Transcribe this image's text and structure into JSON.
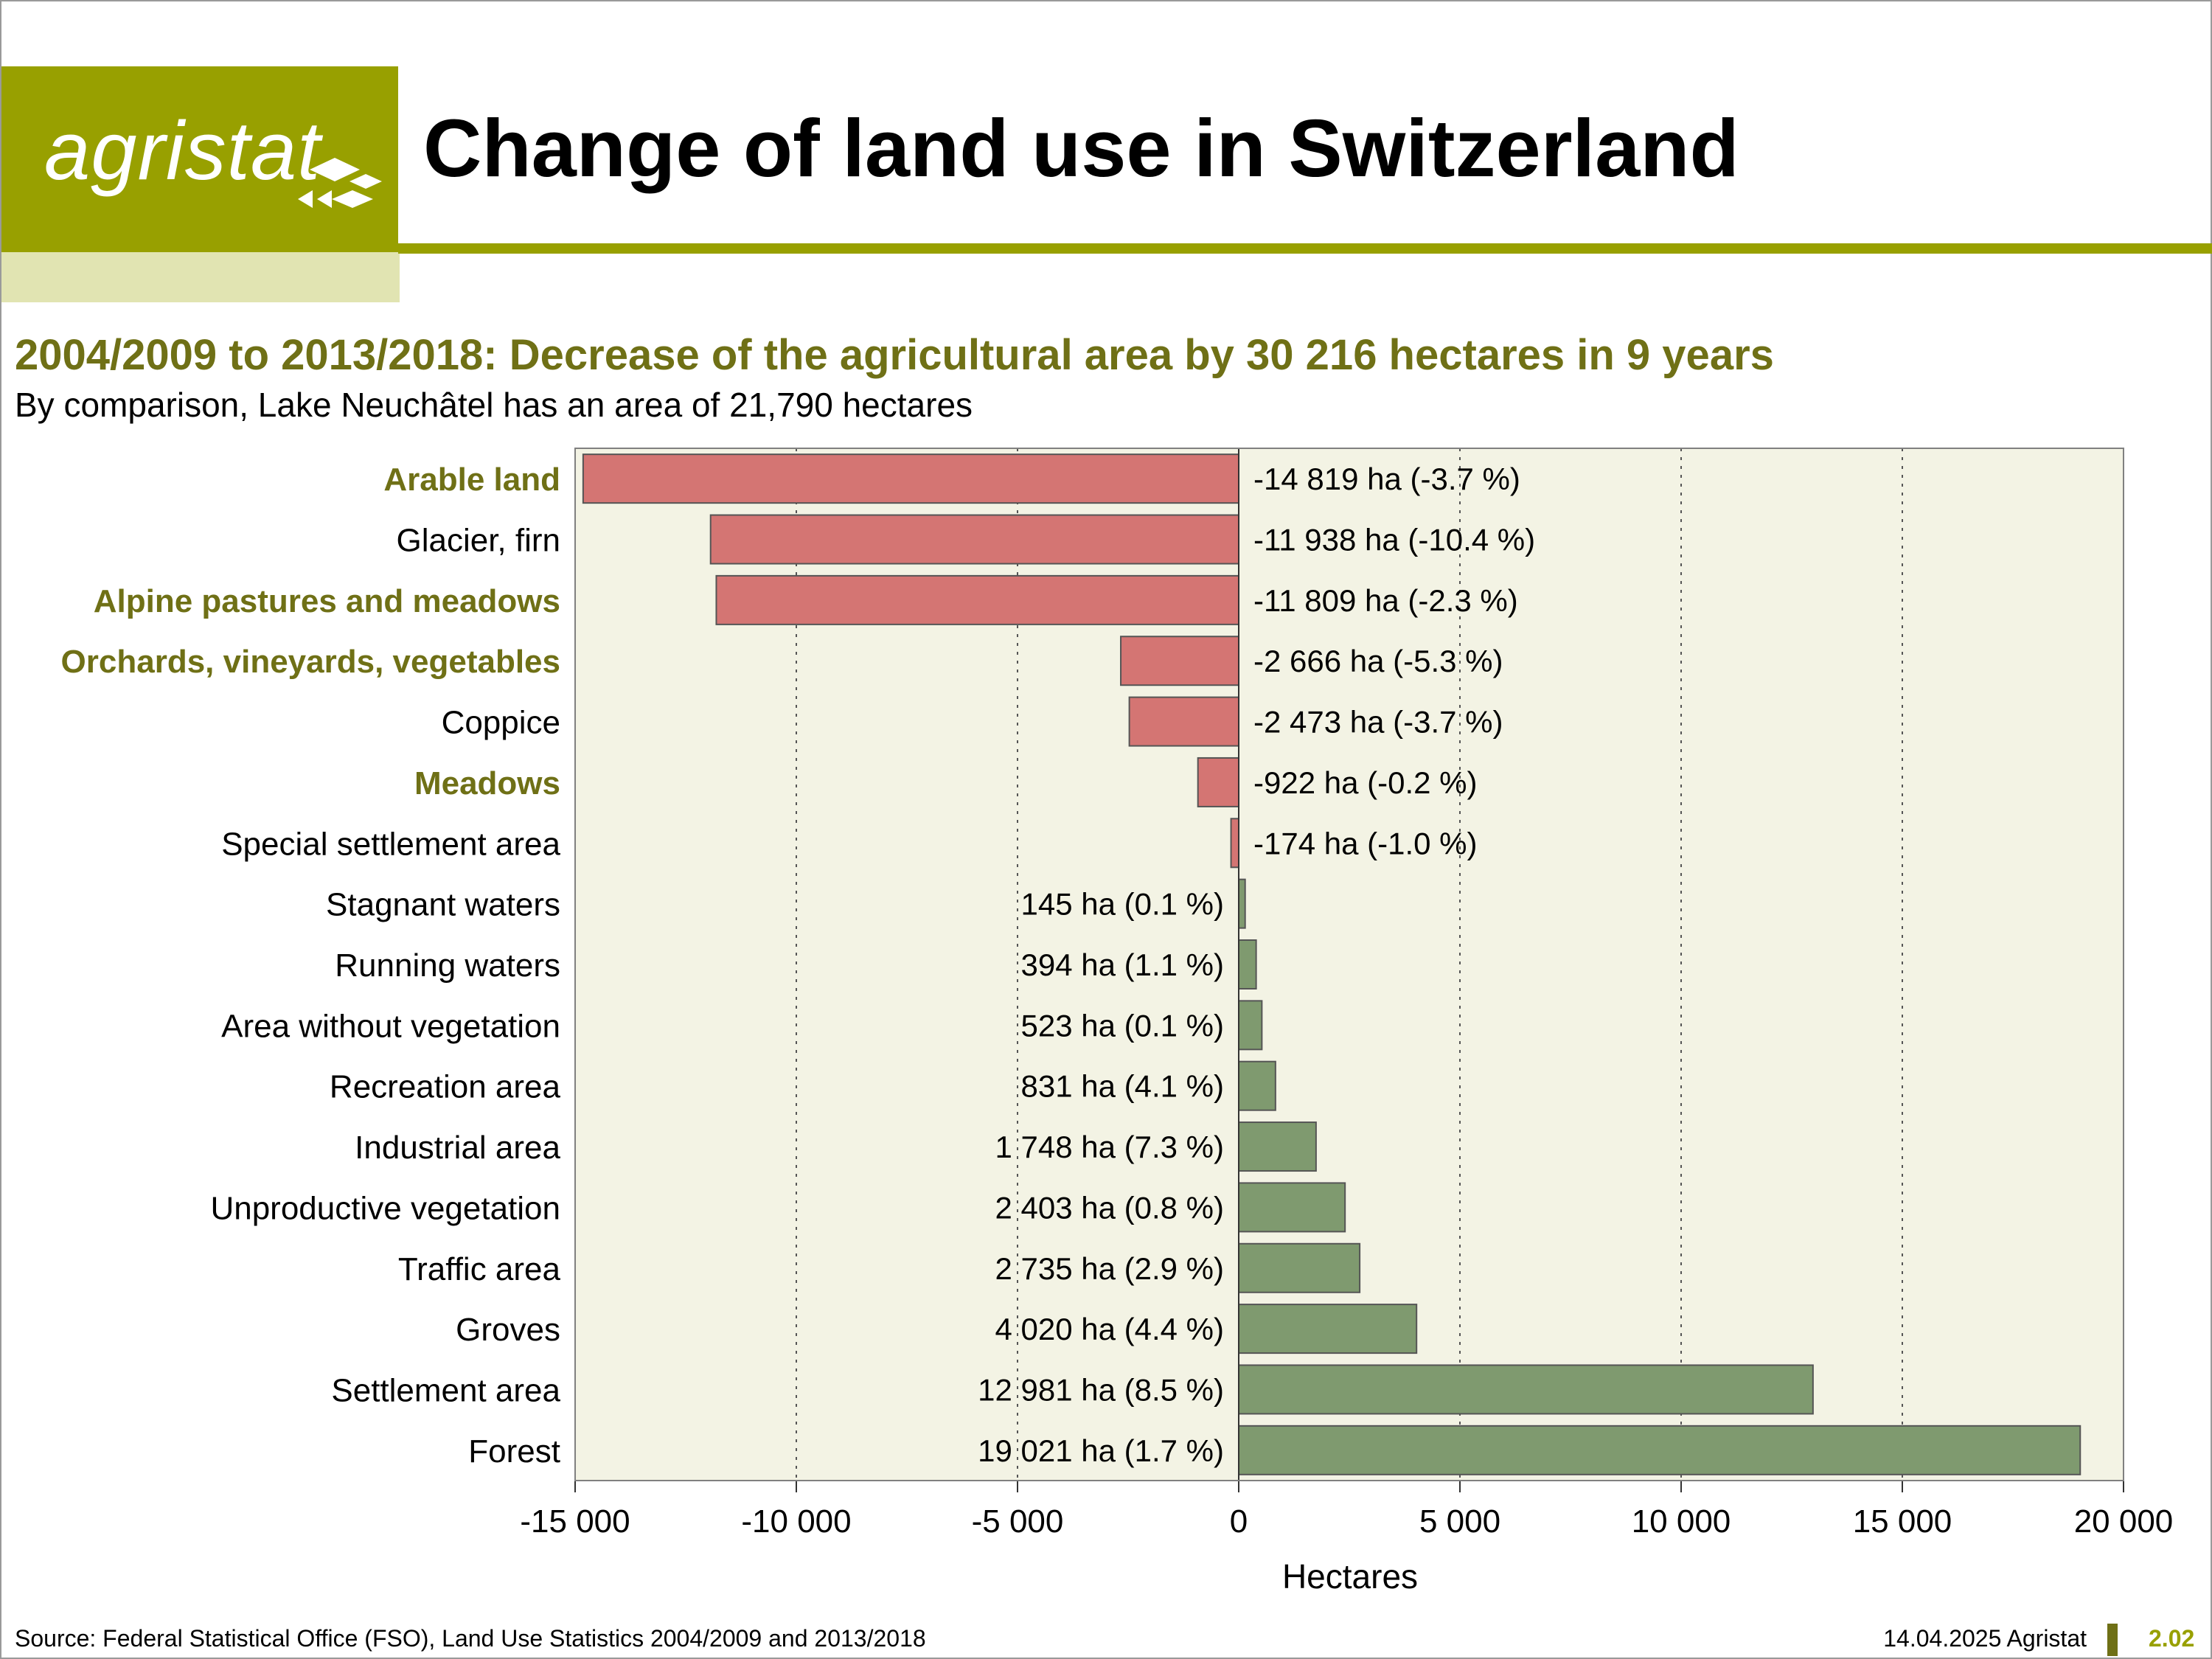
{
  "header": {
    "logo_text": "agristat",
    "title": "Change of land use in Switzerland",
    "brand_color": "#98a000",
    "brand_light": "#e1e4b2"
  },
  "chart_data": {
    "type": "bar",
    "orientation": "horizontal",
    "title": "2004/2009 to 2013/2018: Decrease of the agricultural area by 30 216 hectares in 9 years",
    "subtitle": "By comparison, Lake Neuchâtel has an area of 21,790 hectares",
    "xlabel": "Hectares",
    "ylabel": "",
    "xlim": [
      -15000,
      20000
    ],
    "xticks": [
      -15000,
      -10000,
      -5000,
      0,
      5000,
      10000,
      15000,
      20000
    ],
    "xtick_labels": [
      "-15 000",
      "-10 000",
      "-5 000",
      "0",
      "5 000",
      "10 000",
      "15 000",
      "20 000"
    ],
    "grid": "vertical dotted",
    "colors": {
      "negative": "#d47573",
      "positive": "#7f9a6f",
      "plot_background": "#f3f3e4",
      "agricultural_label": "#6f7016",
      "other_label": "#000000"
    },
    "categories": [
      "Arable land",
      "Glacier, firn",
      "Alpine pastures and meadows",
      "Orchards, vineyards, vegetables",
      "Coppice",
      "Meadows",
      "Special settlement area",
      "Stagnant waters",
      "Running waters",
      "Area without vegetation",
      "Recreation area",
      "Industrial area",
      "Unproductive vegetation",
      "Traffic area",
      "Groves",
      "Settlement area",
      "Forest"
    ],
    "agricultural": [
      true,
      false,
      true,
      true,
      false,
      true,
      false,
      false,
      false,
      false,
      false,
      false,
      false,
      false,
      false,
      false,
      false
    ],
    "values": [
      -14819,
      -11938,
      -11809,
      -2666,
      -2473,
      -922,
      -174,
      145,
      394,
      523,
      831,
      1748,
      2403,
      2735,
      4020,
      12981,
      19021
    ],
    "data_labels": [
      "-14 819 ha (-3.7 %)",
      "-11 938 ha (-10.4 %)",
      "-11 809 ha (-2.3 %)",
      "-2 666 ha (-5.3 %)",
      "-2 473 ha (-3.7 %)",
      "-922 ha (-0.2 %)",
      "-174 ha (-1.0 %)",
      "145 ha (0.1 %)",
      "394 ha (1.1 %)",
      "523 ha (0.1 %)",
      "831 ha (4.1 %)",
      "1 748 ha (7.3 %)",
      "2 403 ha (0.8 %)",
      "2 735 ha (2.9 %)",
      "4 020 ha (4.4 %)",
      "12 981 ha (8.5 %)",
      "19 021 ha (1.7 %)"
    ]
  },
  "footer": {
    "source": "Source: Federal Statistical Office (FSO), Land Use Statistics 2004/2009 and 2013/2018",
    "date": "14.04.2025 Agristat",
    "page": "2.02"
  }
}
